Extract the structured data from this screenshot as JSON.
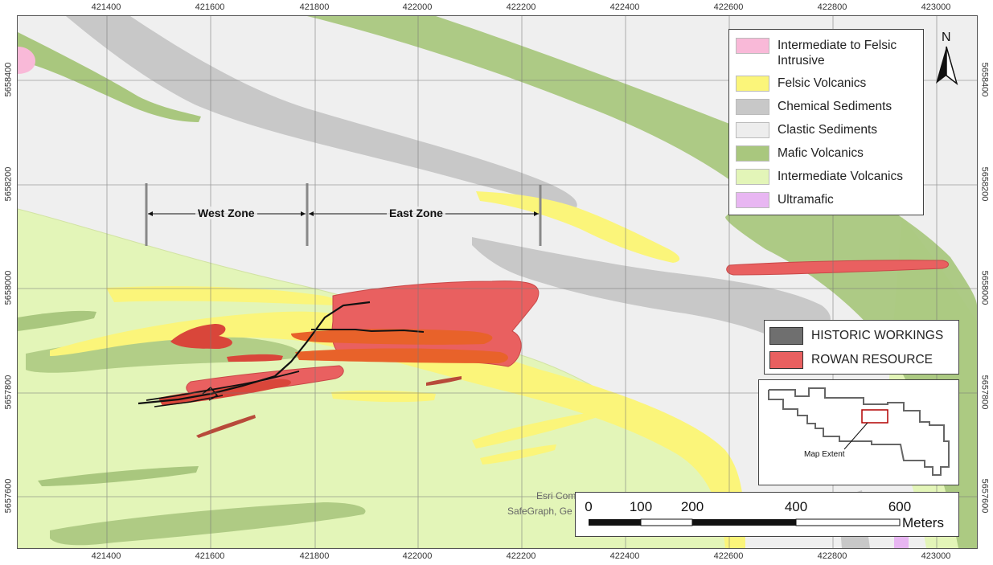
{
  "axes": {
    "easting_ticks": [
      "421400",
      "421600",
      "421800",
      "422000",
      "422200",
      "422400",
      "422600",
      "422800",
      "423000"
    ],
    "northing_ticks": [
      "5658400",
      "5658200",
      "5658000",
      "5657800",
      "5657600"
    ]
  },
  "legend": {
    "items": [
      {
        "label": "Intermediate to Felsic Intrusive",
        "color": "#f9b9d8"
      },
      {
        "label": "Felsic Volcanics",
        "color": "#fbf57a"
      },
      {
        "label": "Chemical Sediments",
        "color": "#c8c8c8"
      },
      {
        "label": "Clastic Sediments",
        "color": "#ededed"
      },
      {
        "label": "Mafic Volcanics",
        "color": "#a9c77e"
      },
      {
        "label": "Intermediate Volcanics",
        "color": "#e3f5b8"
      },
      {
        "label": "Ultramafic",
        "color": "#e8b6f2"
      }
    ]
  },
  "legend2": {
    "items": [
      {
        "label": "HISTORIC WORKINGS",
        "color": "#6f6f6f"
      },
      {
        "label": "ROWAN RESOURCE",
        "color": "#e96060"
      }
    ]
  },
  "zones": {
    "west": "West Zone",
    "east": "East Zone"
  },
  "north_label": "N",
  "inset": {
    "label": "Map Extent"
  },
  "scale": {
    "labels": [
      "0",
      "100",
      "200",
      "400",
      "600"
    ],
    "unit": "Meters"
  },
  "credits": {
    "line1": "Esri Com",
    "line2": "SafeGraph, Ge"
  }
}
